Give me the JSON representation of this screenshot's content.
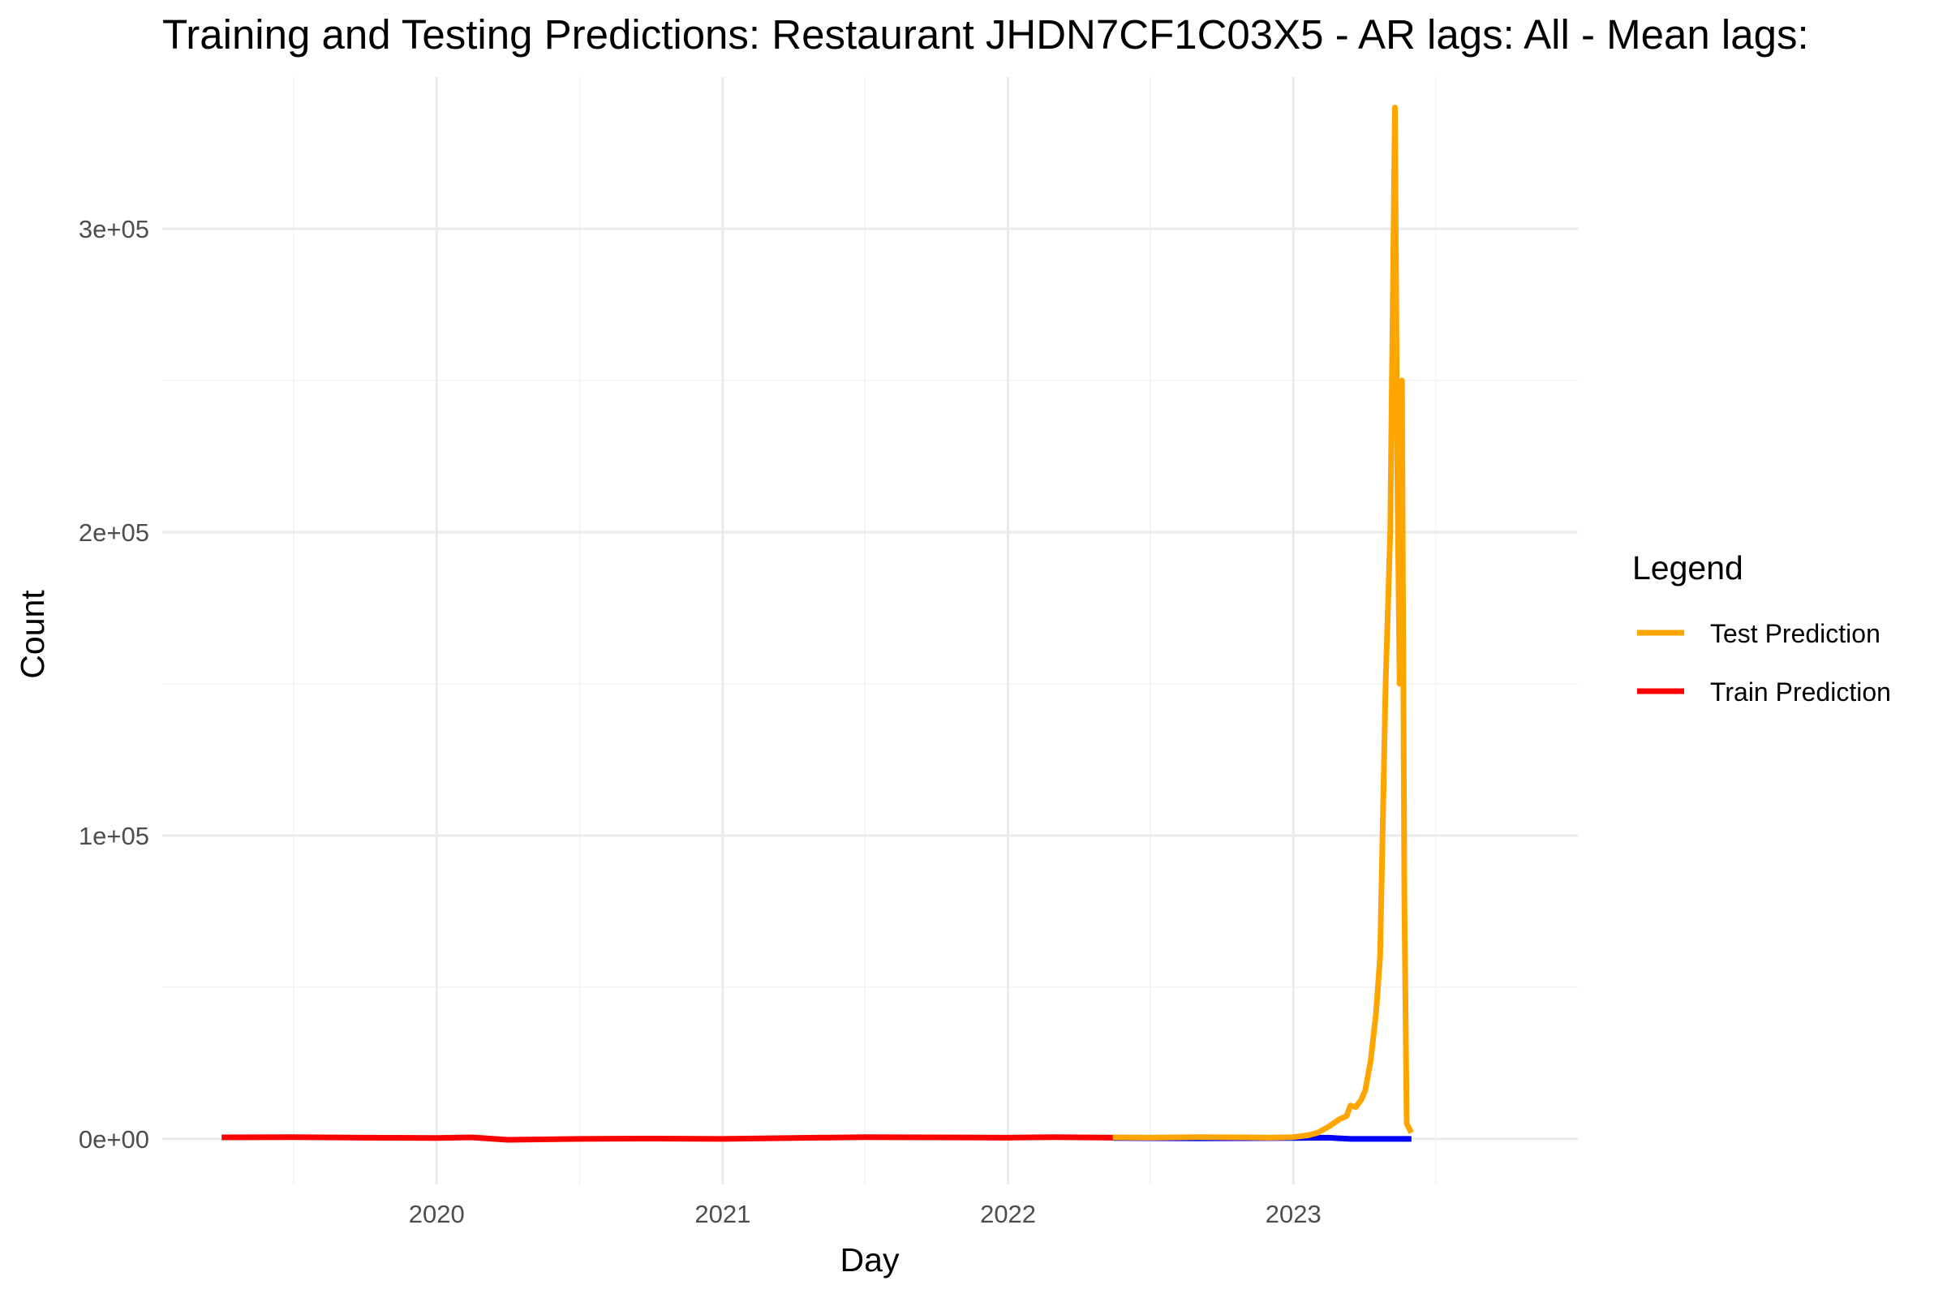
{
  "chart_data": {
    "type": "line",
    "title": "Training and Testing Predictions: Restaurant JHDN7CF1C03X5 - AR lags: All - Mean lags:",
    "xlabel": "Day",
    "ylabel": "Count",
    "x_ticks": [
      "2020",
      "2021",
      "2022",
      "2023"
    ],
    "y_ticks": [
      "0e+00",
      "1e+05",
      "2e+05",
      "3e+05"
    ],
    "y_tick_values": [
      0,
      100000,
      200000,
      300000
    ],
    "xlim": [
      "2019-01-15",
      "2023-12-31"
    ],
    "ylim": [
      -15000,
      350000
    ],
    "grid": true,
    "legend": {
      "title": "Legend",
      "position": "right",
      "entries": [
        {
          "label": "Test Prediction",
          "color": "#FFA500"
        },
        {
          "label": "Train Prediction",
          "color": "#FF0000"
        }
      ]
    },
    "series": [
      {
        "name": "Train Prediction",
        "color": "#FF0000",
        "x": [
          "2019-04-01",
          "2019-07-01",
          "2019-10-01",
          "2020-01-01",
          "2020-02-15",
          "2020-04-01",
          "2020-07-01",
          "2020-10-01",
          "2021-01-01",
          "2021-04-01",
          "2021-07-01",
          "2021-10-01",
          "2022-01-01",
          "2022-03-01",
          "2022-05-15"
        ],
        "y": [
          500,
          600,
          400,
          300,
          500,
          -300,
          0,
          100,
          0,
          300,
          600,
          500,
          400,
          600,
          400
        ]
      },
      {
        "name": "",
        "color": "#0000FF",
        "x": [
          "2022-05-15",
          "2022-09-01",
          "2023-01-01",
          "2023-02-15",
          "2023-03-15",
          "2023-04-15",
          "2023-06-01"
        ],
        "y": [
          300,
          200,
          300,
          400,
          0,
          0,
          0
        ]
      },
      {
        "name": "Test Prediction",
        "color": "#FFA500",
        "x": [
          "2022-05-15",
          "2022-07-01",
          "2022-09-01",
          "2022-11-01",
          "2022-12-01",
          "2023-01-01",
          "2023-01-20",
          "2023-02-01",
          "2023-02-15",
          "2023-03-01",
          "2023-03-10",
          "2023-03-15",
          "2023-03-22",
          "2023-03-29",
          "2023-04-03",
          "2023-04-10",
          "2023-04-17",
          "2023-04-22",
          "2023-04-29",
          "2023-05-05",
          "2023-05-11",
          "2023-05-14",
          "2023-05-17",
          "2023-05-20",
          "2023-05-23",
          "2023-05-26",
          "2023-06-01"
        ],
        "y": [
          500,
          400,
          600,
          500,
          400,
          600,
          1200,
          2000,
          4000,
          6500,
          7500,
          11000,
          10500,
          13000,
          16000,
          26000,
          42000,
          60000,
          150000,
          200000,
          340000,
          220000,
          150000,
          250000,
          80000,
          5000,
          2000
        ]
      }
    ]
  }
}
